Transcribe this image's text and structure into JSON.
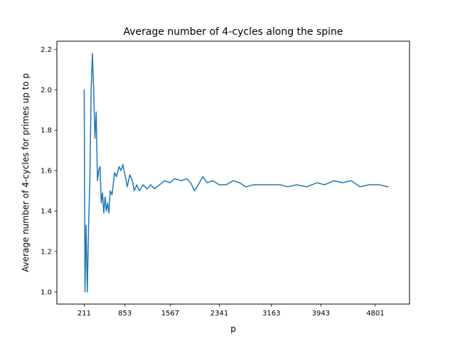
{
  "chart_data": {
    "type": "line",
    "title": "Average number of 4-cycles along the spine",
    "xlabel": "p",
    "ylabel": "Average number of 4-cycles for primes up to p",
    "xlim": [
      -220,
      5340
    ],
    "ylim": [
      0.94,
      2.24
    ],
    "x_ticks": [
      {
        "label": "211",
        "value": 211
      },
      {
        "label": "853",
        "value": 853
      },
      {
        "label": "1567",
        "value": 1567
      },
      {
        "label": "2341",
        "value": 2341
      },
      {
        "label": "3163",
        "value": 3163
      },
      {
        "label": "3943",
        "value": 3943
      },
      {
        "label": "4801",
        "value": 4801
      }
    ],
    "y_ticks": [
      {
        "label": "1.0",
        "value": 1.0
      },
      {
        "label": "1.2",
        "value": 1.2
      },
      {
        "label": "1.4",
        "value": 1.4
      },
      {
        "label": "1.6",
        "value": 1.6
      },
      {
        "label": "1.8",
        "value": 1.8
      },
      {
        "label": "2.0",
        "value": 2.0
      },
      {
        "label": "2.2",
        "value": 2.2
      }
    ],
    "grid": false,
    "legend": "none",
    "series": [
      {
        "color": "#1f77b4",
        "points": [
          [
            211,
            2.0
          ],
          [
            223,
            1.0
          ],
          [
            240,
            1.33
          ],
          [
            260,
            1.0
          ],
          [
            280,
            1.33
          ],
          [
            300,
            1.55
          ],
          [
            320,
            2.0
          ],
          [
            340,
            2.18
          ],
          [
            360,
            2.0
          ],
          [
            380,
            1.76
          ],
          [
            400,
            1.89
          ],
          [
            420,
            1.55
          ],
          [
            440,
            1.6
          ],
          [
            460,
            1.62
          ],
          [
            480,
            1.44
          ],
          [
            500,
            1.49
          ],
          [
            520,
            1.39
          ],
          [
            540,
            1.47
          ],
          [
            560,
            1.4
          ],
          [
            580,
            1.44
          ],
          [
            600,
            1.39
          ],
          [
            620,
            1.5
          ],
          [
            650,
            1.48
          ],
          [
            690,
            1.59
          ],
          [
            720,
            1.57
          ],
          [
            760,
            1.62
          ],
          [
            790,
            1.6
          ],
          [
            820,
            1.63
          ],
          [
            860,
            1.57
          ],
          [
            890,
            1.52
          ],
          [
            930,
            1.58
          ],
          [
            970,
            1.55
          ],
          [
            1000,
            1.5
          ],
          [
            1040,
            1.53
          ],
          [
            1080,
            1.5
          ],
          [
            1140,
            1.53
          ],
          [
            1200,
            1.51
          ],
          [
            1260,
            1.53
          ],
          [
            1320,
            1.51
          ],
          [
            1400,
            1.53
          ],
          [
            1480,
            1.55
          ],
          [
            1560,
            1.54
          ],
          [
            1640,
            1.56
          ],
          [
            1740,
            1.55
          ],
          [
            1830,
            1.56
          ],
          [
            1890,
            1.54
          ],
          [
            1950,
            1.5
          ],
          [
            2010,
            1.53
          ],
          [
            2080,
            1.57
          ],
          [
            2150,
            1.54
          ],
          [
            2240,
            1.55
          ],
          [
            2340,
            1.53
          ],
          [
            2450,
            1.53
          ],
          [
            2560,
            1.55
          ],
          [
            2660,
            1.54
          ],
          [
            2760,
            1.52
          ],
          [
            2880,
            1.53
          ],
          [
            3000,
            1.53
          ],
          [
            3150,
            1.53
          ],
          [
            3300,
            1.53
          ],
          [
            3420,
            1.52
          ],
          [
            3560,
            1.53
          ],
          [
            3720,
            1.52
          ],
          [
            3880,
            1.54
          ],
          [
            4000,
            1.53
          ],
          [
            4150,
            1.55
          ],
          [
            4280,
            1.54
          ],
          [
            4420,
            1.55
          ],
          [
            4560,
            1.52
          ],
          [
            4700,
            1.53
          ],
          [
            4860,
            1.53
          ],
          [
            5000,
            1.52
          ]
        ]
      }
    ]
  }
}
